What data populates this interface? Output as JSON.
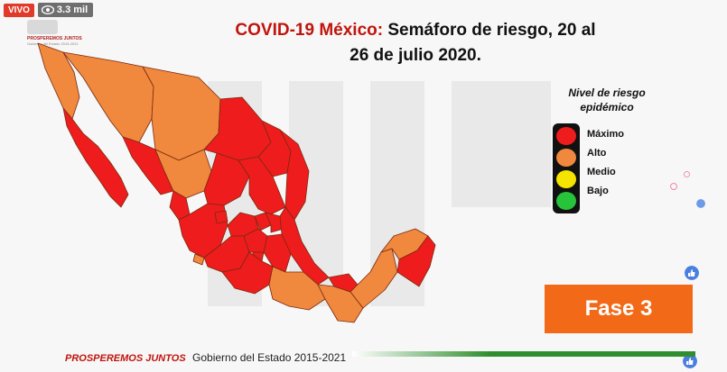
{
  "live_badge": {
    "label": "VIVO",
    "viewers": "3.3 mil"
  },
  "top_logo": {
    "line1": "PROSPEREMOS JUNTOS",
    "line2": "Gobierno del Estado 2015-2021"
  },
  "title": {
    "prefix": "COVID-19 México:",
    "rest": " Semáforo de riesgo, 20 al",
    "line2": "26 de julio 2020."
  },
  "legend": {
    "title_line1": "Nivel de riesgo",
    "title_line2": "epidémico",
    "levels": [
      {
        "label": "Máximo",
        "color": "#ee1c1c"
      },
      {
        "label": "Alto",
        "color": "#f0883e"
      },
      {
        "label": "Medio",
        "color": "#f5e400"
      },
      {
        "label": "Bajo",
        "color": "#27c33a"
      }
    ]
  },
  "phase": {
    "label": "Fase 3"
  },
  "footer": {
    "brand": "PROSPEREMOS JUNTOS",
    "government": "Gobierno del Estado 2015-2021"
  },
  "colors": {
    "max": "#ee1c1c",
    "high": "#f0883e",
    "accent_red": "#c0140c",
    "phase_bg": "#f26a17"
  }
}
